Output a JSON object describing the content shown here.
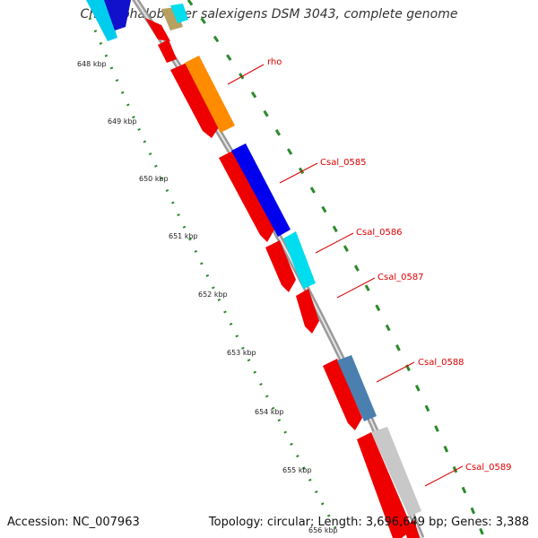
{
  "title": "Chromohalobacter salexigens DSM 3043, complete genome",
  "accession": "Accession: NC_007963",
  "summary": "Topology: circular; Length: 3,696,649 bp; Genes: 3,388",
  "colors": {
    "forward_cds": "#ee0000",
    "backbone": "#8a8a8a",
    "label_line": "#dd0000",
    "tick": "#2a8a2a"
  },
  "kbp_labels": [
    "648 kbp",
    "649 kbp",
    "650 kbp",
    "651 kbp",
    "652 kbp",
    "653 kbp",
    "654 kbp",
    "655 kbp",
    "656 kbp"
  ],
  "gene_labels": [
    "rho",
    "Csal_0585",
    "Csal_0586",
    "Csal_0587",
    "Csal_0588",
    "Csal_0589"
  ]
}
